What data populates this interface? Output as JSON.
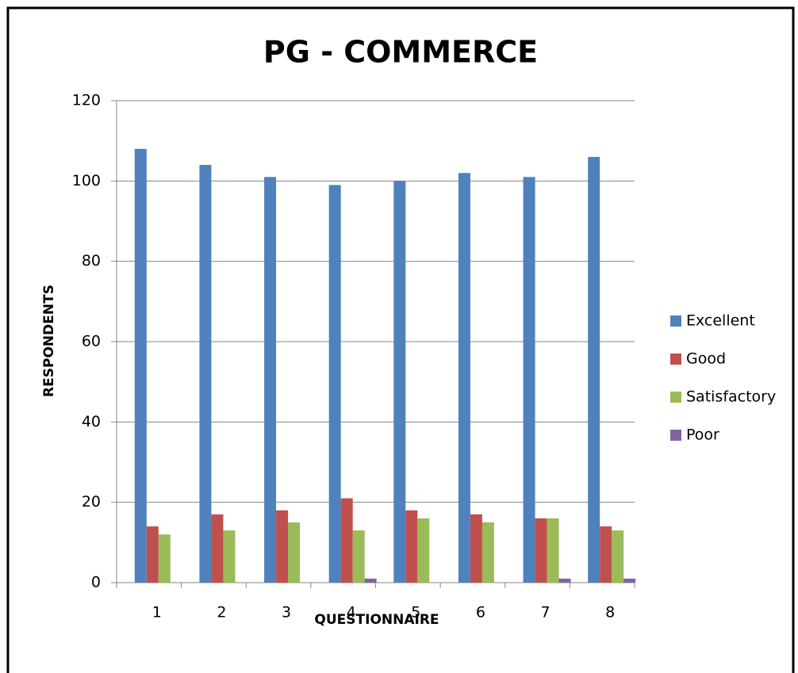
{
  "chart_data": {
    "type": "bar",
    "title": "PG - COMMERCE",
    "x_label": "QUESTIONNAIRE",
    "y_label": "RESPONDENTS",
    "categories": [
      "1",
      "2",
      "3",
      "4",
      "5",
      "6",
      "7",
      "8"
    ],
    "series": [
      {
        "name": "Excellent",
        "color": "#4f81bd",
        "values": [
          108,
          104,
          101,
          99,
          100,
          102,
          101,
          106
        ]
      },
      {
        "name": "Good",
        "color": "#c0504d",
        "values": [
          14,
          17,
          18,
          21,
          18,
          17,
          16,
          14
        ]
      },
      {
        "name": "Satisfactory",
        "color": "#9bbb59",
        "values": [
          12,
          13,
          15,
          13,
          16,
          15,
          16,
          13
        ]
      },
      {
        "name": "Poor",
        "color": "#8064a2",
        "values": [
          0,
          0,
          0,
          1,
          0,
          0,
          1,
          1
        ]
      }
    ],
    "ylim": [
      0,
      120
    ],
    "yticks": [
      0,
      20,
      40,
      60,
      80,
      100,
      120
    ],
    "grid": true,
    "legend": "right"
  }
}
